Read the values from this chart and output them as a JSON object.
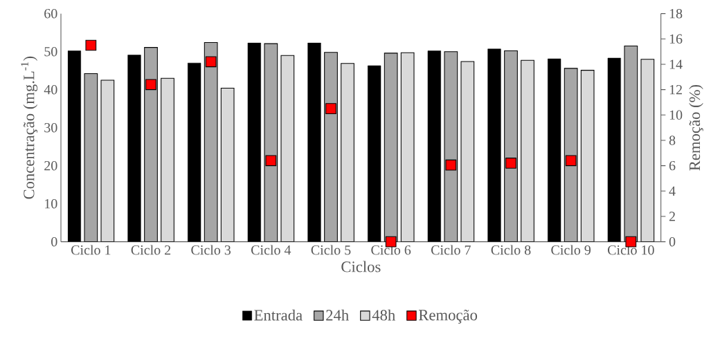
{
  "chart_data": {
    "type": "bar",
    "xlabel": "Ciclos",
    "ylabel": "Concentração (mg.L$^{-1}$)",
    "y2label": "Remoção (%)",
    "categories": [
      "Ciclo 1",
      "Ciclo 2",
      "Ciclo 3",
      "Ciclo 4",
      "Ciclo 5",
      "Ciclo 6",
      "Ciclo 7",
      "Ciclo 8",
      "Ciclo 9",
      "Ciclo 10"
    ],
    "series": [
      {
        "name": "Entrada",
        "color": "#000000",
        "values": [
          50.2,
          49.1,
          47.0,
          52.3,
          52.3,
          46.3,
          50.2,
          50.7,
          48.1,
          48.3
        ]
      },
      {
        "name": "24h",
        "color": "#a6a6a6",
        "values": [
          44.2,
          51.1,
          52.4,
          52.1,
          49.8,
          49.6,
          50.0,
          50.2,
          45.6,
          51.5
        ]
      },
      {
        "name": "48h",
        "color": "#d9d9d9",
        "values": [
          42.5,
          43.0,
          40.4,
          49.0,
          46.9,
          49.7,
          47.4,
          47.7,
          45.1,
          48.0
        ]
      },
      {
        "name": "Remoção",
        "type": "scatter",
        "axis": "y2",
        "marker": "square",
        "color": "#ff0000",
        "values": [
          15.5,
          12.4,
          14.2,
          6.4,
          10.5,
          0,
          6.05,
          6.2,
          6.4,
          0
        ]
      }
    ],
    "ylim": [
      0,
      60
    ],
    "yticks": [
      0,
      10,
      20,
      30,
      40,
      50,
      60
    ],
    "y2lim": [
      0,
      18
    ],
    "y2ticks": [
      0,
      2,
      4,
      6,
      8,
      10,
      12,
      14,
      16,
      18
    ],
    "grid": false,
    "legend": "bottom"
  }
}
